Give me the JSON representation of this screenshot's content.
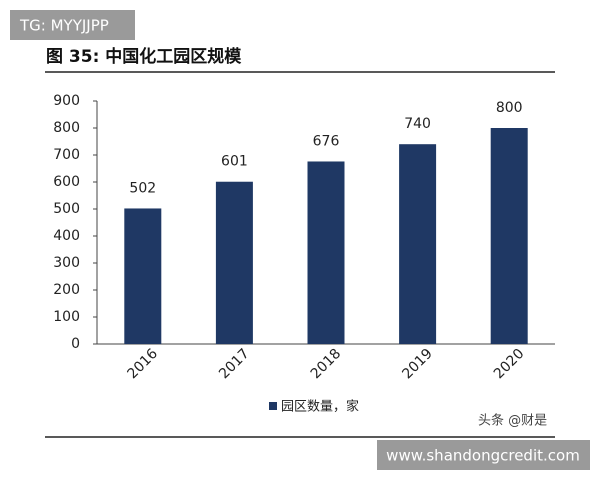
{
  "watermark": "TG: MYYJJPP",
  "website": "www.shandongcredit.com",
  "chart_data": {
    "type": "bar",
    "title": "图 35:  中国化工园区规模",
    "categories": [
      "2016",
      "2017",
      "2018",
      "2019",
      "2020"
    ],
    "series": [
      {
        "name": "园区数量，家",
        "color": "#1f3864",
        "values": [
          502,
          601,
          676,
          740,
          800
        ]
      }
    ],
    "ylim": [
      0,
      900
    ],
    "yticks": [
      0,
      100,
      200,
      300,
      400,
      500,
      600,
      700,
      800,
      900
    ],
    "grid": false,
    "source": "头条 @财是"
  }
}
